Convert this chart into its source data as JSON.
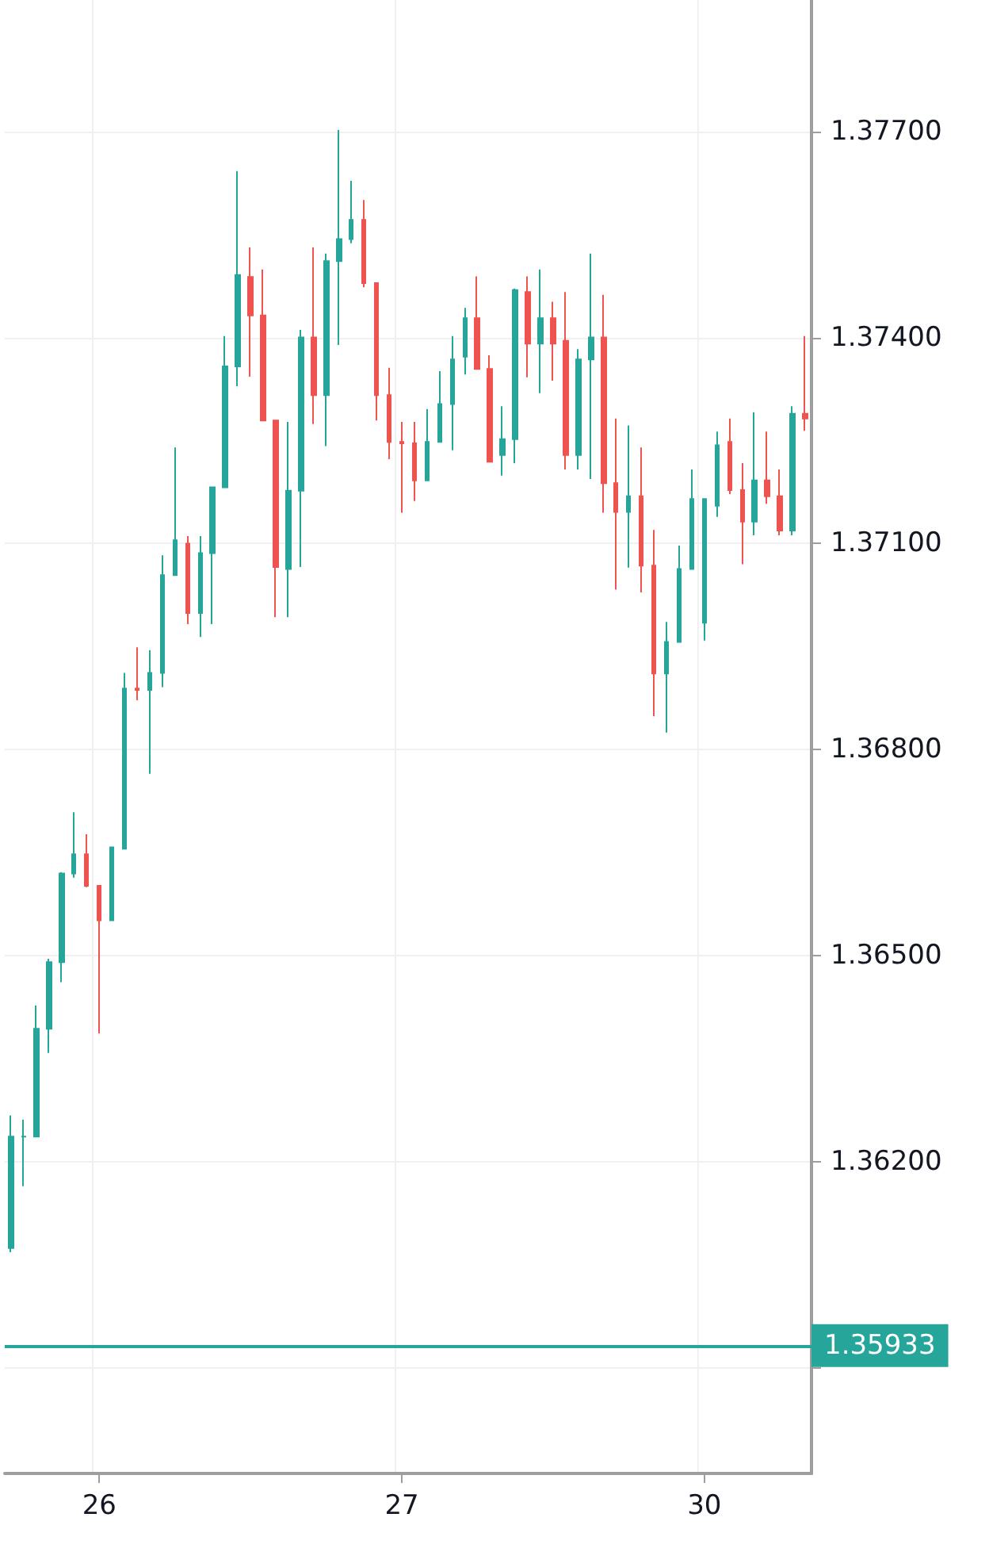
{
  "chart_data": {
    "type": "candlestick",
    "categories": [
      null,
      null,
      null,
      null,
      null,
      null,
      null,
      "26",
      null,
      null,
      null,
      null,
      null,
      null,
      null,
      null,
      null,
      null,
      null,
      null,
      null,
      null,
      null,
      null,
      null,
      null,
      null,
      null,
      null,
      null,
      null,
      "27",
      null,
      null,
      null,
      null,
      null,
      null,
      null,
      null,
      null,
      null,
      null,
      null,
      null,
      null,
      null,
      null,
      null,
      null,
      null,
      null,
      null,
      null,
      null,
      "30",
      null,
      null,
      null,
      null,
      null,
      null,
      null,
      null
    ],
    "ohlc": [
      [
        1.36075,
        1.36268,
        1.36069,
        1.36237
      ],
      [
        1.36237,
        1.36262,
        1.36165,
        1.36237
      ],
      [
        1.36237,
        1.36428,
        1.36237,
        1.36394
      ],
      [
        1.36394,
        1.36496,
        1.36359,
        1.36491
      ],
      [
        1.36491,
        1.36622,
        1.36462,
        1.3662
      ],
      [
        1.3662,
        1.36709,
        1.36614,
        1.36648
      ],
      [
        1.36648,
        1.36677,
        1.366,
        1.36602
      ],
      [
        1.36602,
        1.36602,
        1.36387,
        1.36552
      ],
      [
        1.36552,
        1.36658,
        1.36551,
        1.36658
      ],
      [
        1.36656,
        1.36912,
        1.36656,
        1.36889
      ],
      [
        1.36889,
        1.36949,
        1.36872,
        1.36887
      ],
      [
        1.36887,
        1.36945,
        1.36765,
        1.36912
      ],
      [
        1.36912,
        1.37083,
        1.36891,
        1.37054
      ],
      [
        1.37054,
        1.3724,
        1.37053,
        1.37105
      ],
      [
        1.371,
        1.37111,
        1.36983,
        1.36999
      ],
      [
        1.36999,
        1.37111,
        1.36964,
        1.37086
      ],
      [
        1.37086,
        1.37183,
        1.36983,
        1.37182
      ],
      [
        1.37182,
        1.37402,
        1.37182,
        1.37358
      ],
      [
        1.37358,
        1.37642,
        1.37329,
        1.37491
      ],
      [
        1.37488,
        1.37531,
        1.37343,
        1.37432
      ],
      [
        1.37432,
        1.37499,
        1.37279,
        1.37279
      ],
      [
        1.37279,
        1.37279,
        1.36993,
        1.37066
      ],
      [
        1.37063,
        1.37277,
        1.36993,
        1.37177
      ],
      [
        1.37177,
        1.37411,
        1.37066,
        1.374
      ],
      [
        1.374,
        1.37531,
        1.37274,
        1.37316
      ],
      [
        1.37316,
        1.37522,
        1.37242,
        1.37511
      ],
      [
        1.37511,
        1.37702,
        1.37389,
        1.37543
      ],
      [
        1.37543,
        1.37628,
        1.37537,
        1.37571
      ],
      [
        1.37571,
        1.376,
        1.37473,
        1.37479
      ],
      [
        1.37479,
        1.37479,
        1.37279,
        1.37316
      ],
      [
        1.37316,
        1.37356,
        1.37223,
        1.37248
      ],
      [
        1.37248,
        1.37277,
        1.37145,
        1.37246
      ],
      [
        1.37246,
        1.37277,
        1.37162,
        1.37192
      ],
      [
        1.37192,
        1.37296,
        1.37191,
        1.37248
      ],
      [
        1.37248,
        1.37351,
        1.37248,
        1.37303
      ],
      [
        1.37303,
        1.37402,
        1.37236,
        1.37368
      ],
      [
        1.37372,
        1.37443,
        1.37346,
        1.37428
      ],
      [
        1.37428,
        1.37489,
        1.37354,
        1.37354
      ],
      [
        1.37354,
        1.37374,
        1.37219,
        1.37219
      ],
      [
        1.37229,
        1.373,
        1.37199,
        1.37252
      ],
      [
        1.37252,
        1.37471,
        1.37217,
        1.37469
      ],
      [
        1.37466,
        1.37489,
        1.37342,
        1.37391
      ],
      [
        1.37391,
        1.37499,
        1.37319,
        1.37428
      ],
      [
        1.37428,
        1.37452,
        1.37337,
        1.37391
      ],
      [
        1.37395,
        1.37466,
        1.37208,
        1.37229
      ],
      [
        1.37229,
        1.37383,
        1.37208,
        1.37368
      ],
      [
        1.37368,
        1.37522,
        1.37194,
        1.374
      ],
      [
        1.374,
        1.37462,
        1.37145,
        1.37188
      ],
      [
        1.37188,
        1.37282,
        1.37033,
        1.37146
      ],
      [
        1.37146,
        1.37272,
        1.37065,
        1.37169
      ],
      [
        1.37169,
        1.3724,
        1.37029,
        1.37068
      ],
      [
        1.37068,
        1.3712,
        1.36849,
        1.36911
      ],
      [
        1.36911,
        1.36986,
        1.36825,
        1.36957
      ],
      [
        1.36957,
        1.37097,
        1.36957,
        1.37063
      ],
      [
        1.37063,
        1.37208,
        1.37063,
        1.37165
      ],
      [
        1.36985,
        1.37166,
        1.36959,
        1.37165
      ],
      [
        1.37155,
        1.37263,
        1.37139,
        1.37243
      ],
      [
        1.37248,
        1.37282,
        1.37172,
        1.37178
      ],
      [
        1.37178,
        1.37217,
        1.3707,
        1.37132
      ],
      [
        1.37132,
        1.37291,
        1.37112,
        1.37192
      ],
      [
        1.37192,
        1.37263,
        1.37158,
        1.37169
      ],
      [
        1.37169,
        1.37208,
        1.37112,
        1.37119
      ],
      [
        1.37119,
        1.373,
        1.37112,
        1.37289
      ],
      [
        1.37289,
        1.37402,
        1.37264,
        1.37282
      ]
    ],
    "colors": [
      "#26a69a",
      "#26a69a",
      "#26a69a",
      "#26a69a",
      "#26a69a",
      "#26a69a",
      "#ef5350",
      "#ef5350",
      "#26a69a",
      "#26a69a",
      "#ef5350",
      "#26a69a",
      "#26a69a",
      "#26a69a",
      "#ef5350",
      "#26a69a",
      "#26a69a",
      "#26a69a",
      "#26a69a",
      "#ef5350",
      "#ef5350",
      "#ef5350",
      "#26a69a",
      "#26a69a",
      "#ef5350",
      "#26a69a",
      "#26a69a",
      "#26a69a",
      "#ef5350",
      "#ef5350",
      "#ef5350",
      "#ef5350",
      "#ef5350",
      "#26a69a",
      "#26a69a",
      "#26a69a",
      "#26a69a",
      "#ef5350",
      "#ef5350",
      "#26a69a",
      "#26a69a",
      "#ef5350",
      "#26a69a",
      "#ef5350",
      "#ef5350",
      "#26a69a",
      "#26a69a",
      "#ef5350",
      "#ef5350",
      "#26a69a",
      "#ef5350",
      "#ef5350",
      "#26a69a",
      "#26a69a",
      "#26a69a",
      "#26a69a",
      "#26a69a",
      "#ef5350",
      "#ef5350",
      "#26a69a",
      "#ef5350",
      "#ef5350",
      "#26a69a",
      "#ef5350"
    ],
    "ylim": [
      1.35747,
      1.37891
    ],
    "yticks": [
      {
        "value": 1.359,
        "label": null
      },
      {
        "value": 1.362,
        "label": "1.36200"
      },
      {
        "value": 1.365,
        "label": "1.36500"
      },
      {
        "value": 1.368,
        "label": "1.36800"
      },
      {
        "value": 1.371,
        "label": "1.37100"
      },
      {
        "value": 1.374,
        "label": "1.37400"
      },
      {
        "value": 1.377,
        "label": "1.37700"
      }
    ],
    "ref_lines": [
      {
        "axis": "y",
        "value": 1.35933,
        "label": "1.35933",
        "color": "#26a69a"
      }
    ],
    "grid": true
  }
}
